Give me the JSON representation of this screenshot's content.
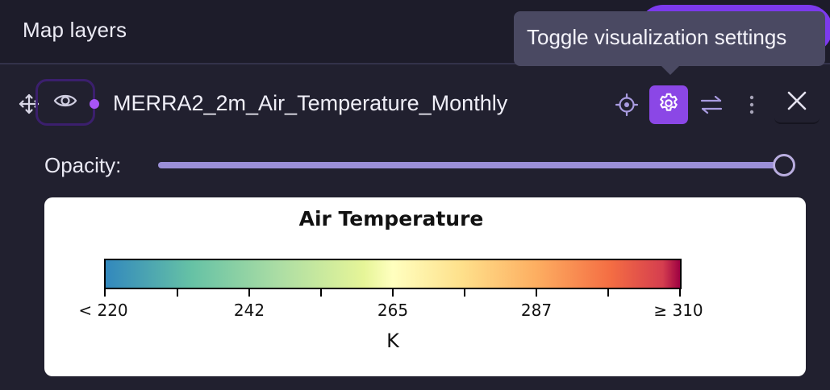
{
  "header": {
    "title": "Map layers"
  },
  "tooltip": {
    "text": "Toggle visualization settings"
  },
  "layer": {
    "name": "MERRA2_2m_Air_Temperature_Monthly",
    "visible": true,
    "dot_color": "#a855f7",
    "icons": [
      "move-icon",
      "eye-icon",
      "crosshair-icon",
      "gear-icon",
      "swap-icon",
      "more-vertical-icon",
      "close-icon"
    ]
  },
  "opacity": {
    "label": "Opacity:",
    "value": 1.0
  },
  "legend": {
    "title": "Air Temperature",
    "unit": "K",
    "ticks": [
      "< 220",
      "242",
      "265",
      "287",
      "≥ 310"
    ],
    "colormap": [
      "#3288bd",
      "#66c2a5",
      "#abdda4",
      "#e6f598",
      "#ffffbf",
      "#fee08b",
      "#fdae61",
      "#f46d43",
      "#d53e4f",
      "#9e0142"
    ]
  },
  "colors": {
    "accent": "#8b47e6",
    "background": "#21202f",
    "tooltip_bg": "#4a4962"
  }
}
